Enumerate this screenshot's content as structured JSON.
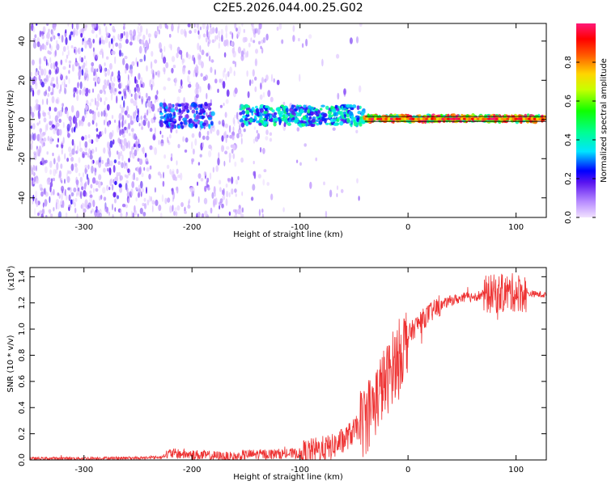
{
  "title": "C2E5.2026.044.00.25.G02",
  "chart_data": [
    {
      "type": "heatmap",
      "xlabel": "Height of straight line (km)",
      "ylabel": "Frequency (Hz)",
      "xlim": [
        -350,
        128
      ],
      "ylim": [
        -50,
        49
      ],
      "xticks": [
        -300,
        -200,
        -100,
        0,
        100
      ],
      "xtick_labels": [
        "-300",
        "-200",
        "-100",
        "0",
        "100"
      ],
      "yticks": [
        -40,
        -20,
        0,
        20,
        40
      ],
      "ytick_labels": [
        "-40",
        "-20",
        "0",
        "20",
        "40"
      ],
      "horizontal_lines_hz": [
        -1,
        1.5
      ],
      "signal_segments": [
        {
          "x_range": [
            -230,
            -180
          ],
          "freq_center": 2,
          "freq_spread": 6,
          "amplitude": 0.28
        },
        {
          "x_range": [
            -155,
            -40
          ],
          "freq_center": 2,
          "freq_spread": 5,
          "amplitude": 0.4
        },
        {
          "x_range": [
            -40,
            128
          ],
          "freq_center": 0.5,
          "freq_spread": 1.5,
          "amplitude": 0.92
        }
      ],
      "colorbar": {
        "label": "Normalized spectral amplitude",
        "ticks": [
          0.0,
          0.2,
          0.4,
          0.6,
          0.8
        ],
        "tick_labels": [
          "0.0",
          "0.2",
          "0.4",
          "0.6",
          "0.8"
        ],
        "range": [
          0,
          1
        ]
      }
    },
    {
      "type": "line",
      "xlabel": "Height of straight line (km)",
      "ylabel": "SNR (10 * v/v)",
      "scale_label": "(x10",
      "scale_exponent": "4",
      "xlim": [
        -350,
        128
      ],
      "ylim": [
        0,
        1.47
      ],
      "xticks": [
        -300,
        -200,
        -100,
        0,
        100
      ],
      "xtick_labels": [
        "-300",
        "-200",
        "-100",
        "0",
        "100"
      ],
      "yticks": [
        0.0,
        0.2,
        0.4,
        0.6,
        0.8,
        1.0,
        1.2,
        1.4
      ],
      "ytick_labels": [
        "0.0",
        "0.2",
        "0.4",
        "0.6",
        "0.8",
        "1.0",
        "1.2",
        "1.4"
      ],
      "color": "#ee3333",
      "envelope": {
        "x": [
          -350,
          -250,
          -230,
          -220,
          -200,
          -160,
          -150,
          -100,
          -70,
          -60,
          -50,
          -40,
          -35,
          -30,
          -25,
          -20,
          -15,
          -10,
          -5,
          0,
          10,
          20,
          30,
          40,
          60,
          80,
          100,
          128
        ],
        "y": [
          0.01,
          0.015,
          0.02,
          0.05,
          0.04,
          0.02,
          0.04,
          0.05,
          0.1,
          0.15,
          0.22,
          0.3,
          0.38,
          0.45,
          0.55,
          0.6,
          0.7,
          0.78,
          0.85,
          0.95,
          1.05,
          1.12,
          1.18,
          1.22,
          1.25,
          1.27,
          1.28,
          1.26
        ]
      },
      "noise_amplitude": [
        {
          "x_range": [
            -350,
            -225
          ],
          "amp": 0.012
        },
        {
          "x_range": [
            -225,
            -160
          ],
          "amp": 0.04
        },
        {
          "x_range": [
            -160,
            -100
          ],
          "amp": 0.04
        },
        {
          "x_range": [
            -100,
            -45
          ],
          "amp": 0.1
        },
        {
          "x_range": [
            -45,
            0
          ],
          "amp": 0.28
        },
        {
          "x_range": [
            0,
            30
          ],
          "amp": 0.08
        },
        {
          "x_range": [
            30,
            70
          ],
          "amp": 0.04
        },
        {
          "x_range": [
            70,
            110
          ],
          "amp": 0.15
        },
        {
          "x_range": [
            110,
            128
          ],
          "amp": 0.025
        }
      ]
    }
  ]
}
